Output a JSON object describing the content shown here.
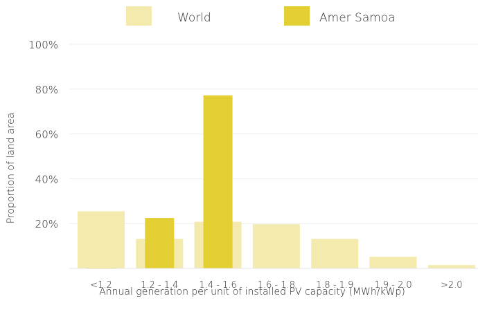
{
  "chart_data": {
    "type": "bar",
    "title": "",
    "xlabel": "Annual generation per unit of installed PV capacity (MWh/kWp)",
    "ylabel": "Proportion of land area",
    "ylim": [
      0,
      100
    ],
    "yticks": [
      20,
      40,
      60,
      80,
      100
    ],
    "ytick_labels": [
      "20%",
      "40%",
      "60%",
      "80%",
      "100%"
    ],
    "grid": true,
    "legend_placement": "top",
    "categories": [
      "<1.2",
      "1.2 - 1.4",
      "1.4 - 1.6",
      "1.6 - 1.8",
      "1.8 - 1.9",
      "1.9 - 2.0",
      ">2.0"
    ],
    "series": [
      {
        "name": "World",
        "color": "#f5eaad",
        "values": [
          25.5,
          13.2,
          20.8,
          19.7,
          13.2,
          5.2,
          1.5
        ]
      },
      {
        "name": "Amer Samoa",
        "color": "#e3cf33",
        "values": [
          0.3,
          22.5,
          77.2,
          0,
          0,
          0,
          0
        ]
      }
    ]
  }
}
